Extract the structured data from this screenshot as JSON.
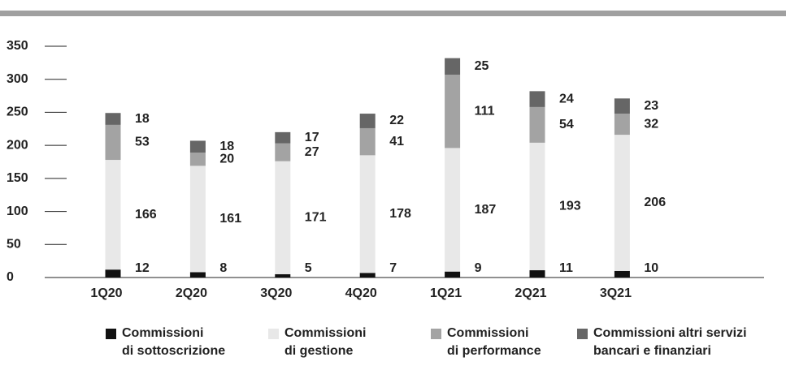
{
  "chart_data": {
    "type": "stacked_bar",
    "categories": [
      "1Q20",
      "2Q20",
      "3Q20",
      "4Q20",
      "1Q21",
      "2Q21",
      "3Q21"
    ],
    "series": [
      {
        "name": "Commissioni\ndi sottoscrizione",
        "color": "#111111",
        "values": [
          12,
          8,
          5,
          7,
          9,
          11,
          10
        ]
      },
      {
        "name": "Commissioni\ndi gestione",
        "color": "#e8e8e8",
        "values": [
          166,
          161,
          171,
          178,
          187,
          193,
          206
        ]
      },
      {
        "name": "Commissioni\ndi performance",
        "color": "#a3a3a3",
        "values": [
          53,
          20,
          27,
          41,
          111,
          54,
          32
        ]
      },
      {
        "name": "Commissioni altri servizi\nbancari e finanziari",
        "color": "#666666",
        "values": [
          18,
          18,
          17,
          22,
          25,
          24,
          23
        ]
      }
    ],
    "ylim": [
      0,
      350
    ],
    "yticks": [
      0,
      50,
      100,
      150,
      200,
      250,
      300,
      350
    ]
  }
}
